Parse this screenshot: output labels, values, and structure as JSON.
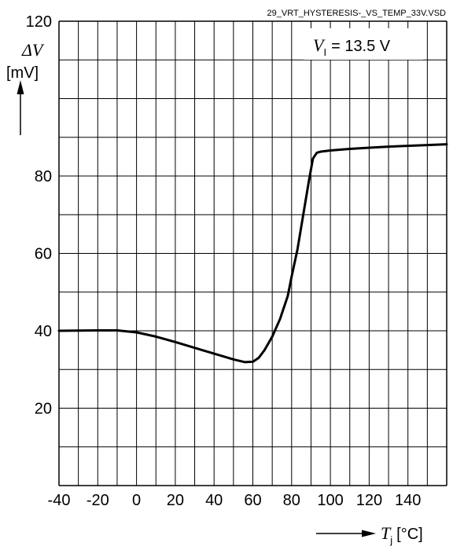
{
  "file_label": "29_VRT_HYSTERESIS-_VS_TEMP_33V.VSD",
  "y_axis": {
    "symbol": "ΔV",
    "unit": "[mV]"
  },
  "x_axis": {
    "symbol": "T",
    "subscript": "j",
    "unit": "[°C]"
  },
  "condition": {
    "symbol": "V",
    "subscript": "I",
    "text": "= 13.5 V"
  },
  "chart_data": {
    "type": "line",
    "title": "",
    "xlabel": "T j [°C]",
    "ylabel": "ΔV [mV]",
    "xlim": [
      -40,
      160
    ],
    "ylim": [
      0,
      120
    ],
    "x_ticks": [
      -40,
      -20,
      0,
      20,
      40,
      60,
      80,
      100,
      120,
      140
    ],
    "x_tick_labels": [
      "-40",
      "-20",
      "0",
      "20",
      "40",
      "60",
      "80",
      "100",
      "120",
      "140"
    ],
    "y_ticks": [
      20,
      40,
      60,
      80,
      120
    ],
    "y_tick_labels": [
      "20",
      "40",
      "60",
      "80",
      "120"
    ],
    "grid": true,
    "series": [
      {
        "x": [
          -40,
          -20,
          -10,
          0,
          10,
          20,
          30,
          40,
          50,
          56,
          60,
          63,
          66,
          70,
          74,
          78,
          80,
          83,
          86,
          89,
          91,
          93,
          95,
          100,
          110,
          120,
          130,
          140,
          150,
          160
        ],
        "y": [
          40,
          40.1,
          40.1,
          39.6,
          38.5,
          37.1,
          35.6,
          34.1,
          32.6,
          31.9,
          32.0,
          33.0,
          35.0,
          38.5,
          43.0,
          49.0,
          54.0,
          61.0,
          70.0,
          79.0,
          84.5,
          86.0,
          86.3,
          86.6,
          87.0,
          87.3,
          87.6,
          87.8,
          88.0,
          88.2
        ]
      }
    ]
  }
}
